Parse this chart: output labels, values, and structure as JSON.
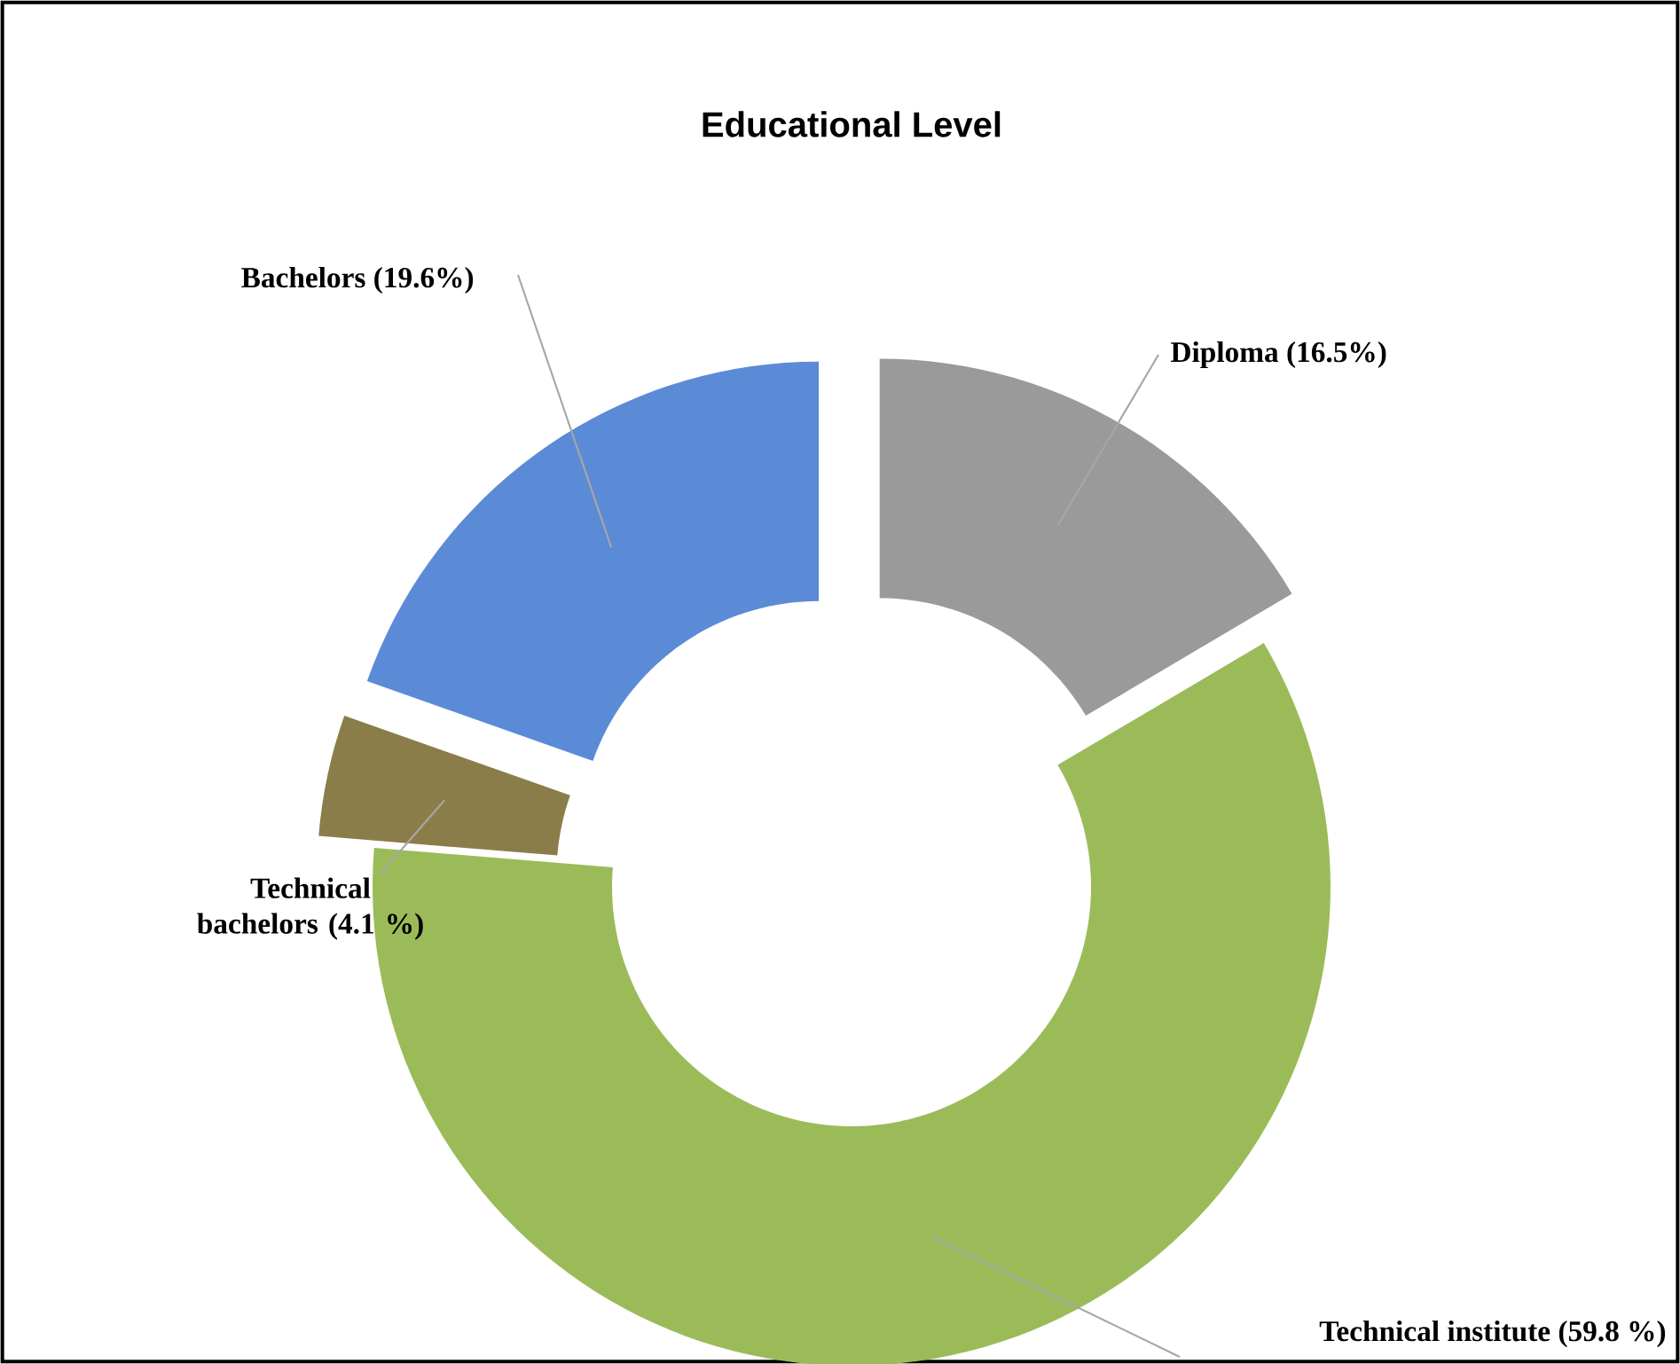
{
  "chart_data": {
    "type": "donut",
    "title": "Educational Level",
    "categories": [
      "Diploma",
      "Technical institute",
      "Technical bachelors",
      "Bachelors"
    ],
    "values": [
      16.5,
      59.8,
      4.1,
      19.6
    ],
    "value_labels": [
      "(16.5%)",
      "(59.8 %)",
      "(4.1 %)",
      "(19.6%)"
    ],
    "colors": [
      "#9a9a9a",
      "#9bbb59",
      "#8b7d4a",
      "#5b8bd6"
    ]
  }
}
